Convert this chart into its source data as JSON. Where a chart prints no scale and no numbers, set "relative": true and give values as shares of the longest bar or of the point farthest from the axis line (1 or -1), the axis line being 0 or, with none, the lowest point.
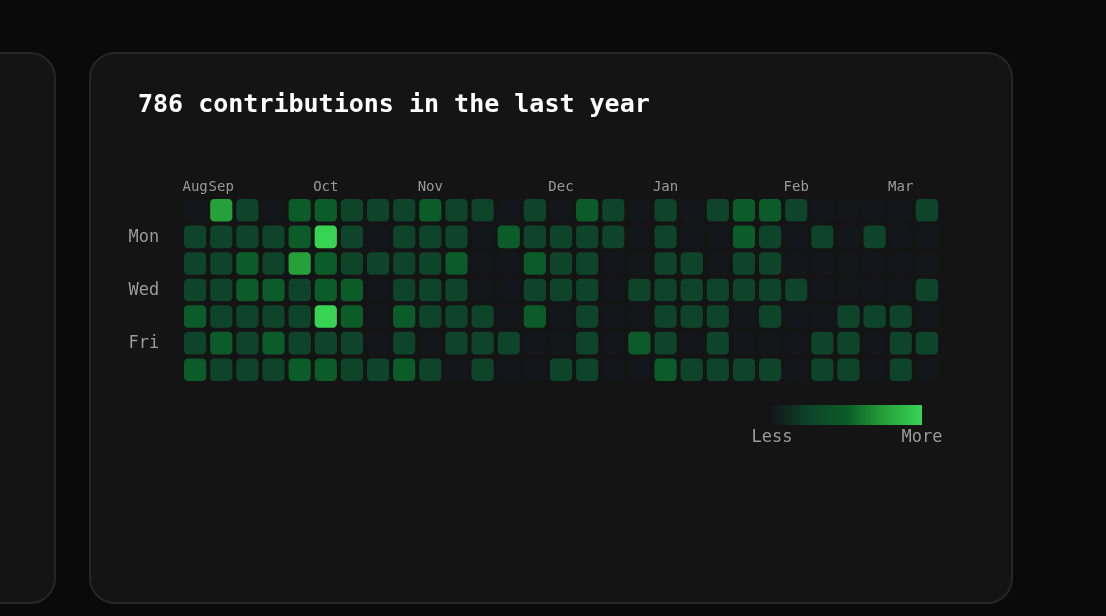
{
  "chart_data": {
    "type": "heatmap",
    "title": "786 contributions in the last year",
    "categories": [
      "Aug",
      "Sep",
      null,
      null,
      null,
      "Oct",
      null,
      null,
      null,
      "Nov",
      null,
      null,
      null,
      null,
      "Dec",
      null,
      null,
      null,
      "Jan",
      null,
      null,
      null,
      null,
      "Feb",
      null,
      null,
      null,
      "Mar",
      null
    ],
    "y_categories": [
      null,
      "Mon",
      null,
      "Wed",
      null,
      "Fri",
      null
    ],
    "relative": true,
    "cells": [
      [
        0,
        0.75,
        0.25,
        0,
        0.5,
        0.5,
        0.25,
        0.25,
        0.25,
        0.5,
        0.25,
        0.25,
        0,
        0.25,
        0,
        0.5,
        0.25,
        0,
        0.25,
        0,
        0.25,
        0.5,
        0.5,
        0.25,
        0,
        0,
        0,
        0,
        0.25
      ],
      [
        0.25,
        0.25,
        0.25,
        0.25,
        0.5,
        1,
        0.25,
        0,
        0.25,
        0.25,
        0.25,
        0,
        0.5,
        0.25,
        0.25,
        0.25,
        0.25,
        0,
        0.25,
        0,
        0,
        0.5,
        0.25,
        0,
        0.25,
        0,
        0.25,
        0,
        0
      ],
      [
        0.25,
        0.25,
        0.5,
        0.25,
        0.75,
        0.5,
        0.25,
        0.25,
        0.25,
        0.25,
        0.5,
        0,
        0,
        0.5,
        0.25,
        0.25,
        0,
        0,
        0.25,
        0.25,
        0,
        0.25,
        0.25,
        0,
        0,
        0,
        0,
        0,
        0
      ],
      [
        0.25,
        0.25,
        0.5,
        0.5,
        0.25,
        0.5,
        0.5,
        0,
        0.25,
        0.25,
        0.25,
        0,
        0,
        0.25,
        0.25,
        0.25,
        0,
        0.25,
        0.25,
        0.25,
        0.25,
        0.25,
        0.25,
        0.25,
        0,
        0,
        0,
        0,
        0.25
      ],
      [
        0.5,
        0.25,
        0.25,
        0.25,
        0.25,
        1,
        0.5,
        0,
        0.5,
        0.25,
        0.25,
        0.25,
        0,
        0.5,
        0,
        0.25,
        0,
        0,
        0.25,
        0.25,
        0.25,
        0,
        0.25,
        0,
        0,
        0.25,
        0.25,
        0.25,
        0
      ],
      [
        0.25,
        0.5,
        0.25,
        0.5,
        0.25,
        0.25,
        0.25,
        0,
        0.25,
        0,
        0.25,
        0.25,
        0.25,
        0,
        0,
        0.25,
        0,
        0.5,
        0.25,
        0,
        0.25,
        0,
        0,
        0,
        0.25,
        0.25,
        0,
        0.25,
        0.25
      ],
      [
        0.5,
        0.25,
        0.25,
        0.25,
        0.5,
        0.5,
        0.25,
        0.25,
        0.5,
        0.25,
        0,
        0.25,
        0,
        0,
        0.25,
        0.25,
        0,
        0,
        0.5,
        0.25,
        0.25,
        0.25,
        0.25,
        0,
        0.25,
        0.25,
        0,
        0.25,
        0
      ]
    ],
    "cticks": [
      {
        "value": 0,
        "label": "Less"
      },
      {
        "value": 1,
        "label": "More"
      }
    ],
    "colors": [
      "#13171c",
      "#0e4429",
      "#0b5c28",
      "#26a03a",
      "#39d353"
    ]
  }
}
